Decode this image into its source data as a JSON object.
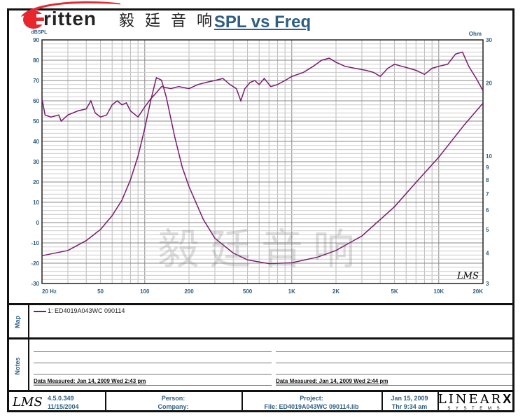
{
  "logo": {
    "brand": "ritten",
    "brand_initial": "E",
    "chinese": "毅 廷 音 响",
    "watermark": "毅廷音响"
  },
  "chart_data": {
    "type": "line",
    "title": "SPL vs Freq",
    "ylabel": "dBSPL",
    "y2label": "Ohm",
    "xscale": "log",
    "xlim": [
      20,
      20000
    ],
    "ylim": [
      -30,
      90
    ],
    "y2lim": [
      3,
      30
    ],
    "y2scale": "log",
    "grid": true,
    "xticks": [
      {
        "v": 20,
        "l": "20 Hz"
      },
      {
        "v": 50,
        "l": "50"
      },
      {
        "v": 100,
        "l": "100"
      },
      {
        "v": 200,
        "l": "200"
      },
      {
        "v": 500,
        "l": "500"
      },
      {
        "v": 1000,
        "l": "1K"
      },
      {
        "v": 2000,
        "l": "2K"
      },
      {
        "v": 5000,
        "l": "5K"
      },
      {
        "v": 10000,
        "l": "10K"
      },
      {
        "v": 20000,
        "l": "20K"
      }
    ],
    "yticks": [
      90,
      80,
      70,
      60,
      50,
      40,
      30,
      20,
      10,
      0,
      -10,
      -20,
      -30
    ],
    "y2ticks": [
      30,
      20,
      10,
      9,
      8,
      7,
      6,
      5,
      4,
      3
    ],
    "color": "#7a1a6e",
    "series": [
      {
        "axis": "left",
        "points": [
          [
            20,
            61
          ],
          [
            21,
            53
          ],
          [
            23,
            52
          ],
          [
            26,
            53
          ],
          [
            27,
            50
          ],
          [
            30,
            53
          ],
          [
            35,
            55
          ],
          [
            40,
            56
          ],
          [
            43,
            60
          ],
          [
            46,
            54
          ],
          [
            50,
            52
          ],
          [
            55,
            53
          ],
          [
            60,
            58
          ],
          [
            65,
            60
          ],
          [
            70,
            58
          ],
          [
            75,
            59
          ],
          [
            80,
            55
          ],
          [
            90,
            52
          ],
          [
            100,
            57
          ],
          [
            110,
            61
          ],
          [
            120,
            64
          ],
          [
            130,
            67
          ],
          [
            150,
            66
          ],
          [
            170,
            67
          ],
          [
            200,
            66
          ],
          [
            230,
            68
          ],
          [
            260,
            69
          ],
          [
            300,
            70
          ],
          [
            340,
            71
          ],
          [
            380,
            68
          ],
          [
            420,
            66
          ],
          [
            450,
            60
          ],
          [
            480,
            66
          ],
          [
            520,
            69
          ],
          [
            560,
            70
          ],
          [
            600,
            68
          ],
          [
            650,
            71
          ],
          [
            720,
            67
          ],
          [
            800,
            68
          ],
          [
            900,
            70
          ],
          [
            1000,
            72
          ],
          [
            1200,
            74
          ],
          [
            1400,
            77
          ],
          [
            1600,
            80
          ],
          [
            1800,
            81
          ],
          [
            2000,
            79
          ],
          [
            2300,
            77
          ],
          [
            2700,
            76
          ],
          [
            3200,
            75
          ],
          [
            3600,
            74
          ],
          [
            4000,
            72
          ],
          [
            4500,
            76
          ],
          [
            5000,
            78
          ],
          [
            5600,
            77
          ],
          [
            6300,
            76
          ],
          [
            7000,
            75
          ],
          [
            8000,
            73
          ],
          [
            9000,
            76
          ],
          [
            10000,
            77
          ],
          [
            11500,
            78
          ],
          [
            13000,
            83
          ],
          [
            14500,
            84
          ],
          [
            16000,
            77
          ],
          [
            18000,
            71
          ],
          [
            20000,
            65
          ]
        ]
      },
      {
        "axis": "right",
        "points": [
          [
            20,
            3.9
          ],
          [
            30,
            4.1
          ],
          [
            40,
            4.5
          ],
          [
            50,
            5.0
          ],
          [
            60,
            5.7
          ],
          [
            70,
            6.6
          ],
          [
            80,
            8
          ],
          [
            90,
            10
          ],
          [
            100,
            13
          ],
          [
            110,
            17
          ],
          [
            120,
            21
          ],
          [
            130,
            20.5
          ],
          [
            140,
            17.5
          ],
          [
            160,
            12
          ],
          [
            180,
            9
          ],
          [
            200,
            7.5
          ],
          [
            250,
            5.5
          ],
          [
            300,
            4.6
          ],
          [
            400,
            4.0
          ],
          [
            500,
            3.75
          ],
          [
            700,
            3.62
          ],
          [
            1000,
            3.65
          ],
          [
            1500,
            3.85
          ],
          [
            2000,
            4.1
          ],
          [
            3000,
            4.7
          ],
          [
            5000,
            6.2
          ],
          [
            7000,
            7.8
          ],
          [
            10000,
            9.9
          ],
          [
            15000,
            13.5
          ],
          [
            20000,
            16.5
          ]
        ]
      }
    ]
  },
  "lms_mark": "LMS",
  "map": {
    "label": "Map",
    "legend": "1: ED4019A043WC  090114"
  },
  "notes": {
    "label": "Notes",
    "left_measured": "Data Measured: Jan 14, 2009  Wed  2:43 pm",
    "right_measured": "Data Measured: Jan 14, 2009  Wed  2:44 pm"
  },
  "footer": {
    "version": "4.5.0.349",
    "version_date": "11/15/2004",
    "person": "Person:",
    "company": "Company:",
    "project": "Project:",
    "file": "File: ED4019A043WC 090114.lib",
    "date": "Jan 15, 2009",
    "time": "Thr  9:34 am",
    "brand": "LINEAR",
    "brand_x": "X",
    "brand_sub": "S Y S T E M S"
  }
}
